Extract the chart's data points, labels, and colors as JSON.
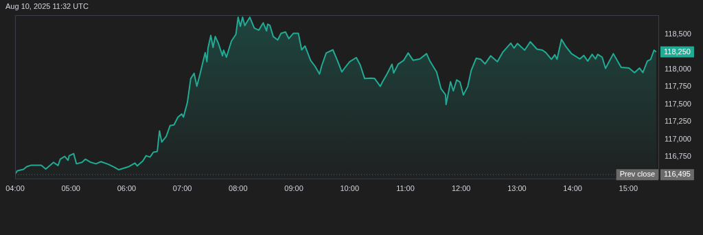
{
  "chart_data": {
    "type": "area",
    "title": "Aug 10, 2025 11:32 UTC",
    "x": [
      4.0,
      4.04,
      4.15,
      4.21,
      4.29,
      4.47,
      4.55,
      4.69,
      4.77,
      4.81,
      4.89,
      4.95,
      4.97,
      5.05,
      5.1,
      5.2,
      5.26,
      5.36,
      5.45,
      5.54,
      5.68,
      5.78,
      5.86,
      5.94,
      6.04,
      6.15,
      6.19,
      6.29,
      6.35,
      6.42,
      6.48,
      6.55,
      6.59,
      6.63,
      6.71,
      6.78,
      6.85,
      6.92,
      6.99,
      7.02,
      7.09,
      7.15,
      7.21,
      7.26,
      7.32,
      7.38,
      7.41,
      7.44,
      7.46,
      7.51,
      7.55,
      7.59,
      7.64,
      7.72,
      7.74,
      7.79,
      7.88,
      7.96,
      8.0,
      8.04,
      8.08,
      8.12,
      8.21,
      8.29,
      8.37,
      8.45,
      8.51,
      8.53,
      8.57,
      8.63,
      8.71,
      8.77,
      8.85,
      8.91,
      8.99,
      9.08,
      9.14,
      9.2,
      9.3,
      9.38,
      9.46,
      9.5,
      9.58,
      9.7,
      9.78,
      9.86,
      9.92,
      10.0,
      10.12,
      10.19,
      10.27,
      10.39,
      10.45,
      10.55,
      10.59,
      10.67,
      10.76,
      10.79,
      10.87,
      10.97,
      11.05,
      11.14,
      11.26,
      11.38,
      11.44,
      11.56,
      11.64,
      11.72,
      11.73,
      11.81,
      11.86,
      11.92,
      11.98,
      12.04,
      12.12,
      12.18,
      12.27,
      12.35,
      12.43,
      12.53,
      12.65,
      12.75,
      12.89,
      12.95,
      13.01,
      13.14,
      13.24,
      13.36,
      13.46,
      13.52,
      13.62,
      13.68,
      13.72,
      13.8,
      13.88,
      13.98,
      14.13,
      14.2,
      14.27,
      14.35,
      14.41,
      14.45,
      14.53,
      14.59,
      14.73,
      14.87,
      15.01,
      15.11,
      15.2,
      15.26,
      15.34,
      15.4,
      15.46,
      15.5
    ],
    "series": [
      {
        "color": "#22ab94",
        "values": [
          116505,
          116550,
          116570,
          116610,
          116630,
          116630,
          116575,
          116670,
          116625,
          116715,
          116755,
          116700,
          116765,
          116795,
          116650,
          116670,
          116715,
          116670,
          116650,
          116680,
          116640,
          116600,
          116565,
          116585,
          116610,
          116660,
          116620,
          116690,
          116765,
          116745,
          116815,
          116825,
          117120,
          116960,
          117040,
          117195,
          117205,
          117315,
          117360,
          117315,
          117525,
          117865,
          117940,
          117755,
          117940,
          118140,
          118235,
          118105,
          118300,
          118480,
          118310,
          118465,
          118380,
          118190,
          118270,
          118170,
          118400,
          118495,
          118740,
          118610,
          118740,
          118620,
          118740,
          118585,
          118555,
          118660,
          118545,
          118640,
          118625,
          118465,
          118415,
          118510,
          118530,
          118435,
          118510,
          118510,
          118275,
          118330,
          118125,
          118040,
          117930,
          118050,
          118230,
          118275,
          118125,
          117960,
          118025,
          118105,
          118165,
          118060,
          117865,
          117870,
          117865,
          117755,
          117820,
          117930,
          118070,
          117945,
          118070,
          118125,
          118230,
          118125,
          118145,
          118220,
          118115,
          117960,
          117720,
          117635,
          117495,
          117820,
          117690,
          117845,
          117815,
          117630,
          117755,
          117980,
          118155,
          118140,
          118075,
          118190,
          118105,
          118245,
          118370,
          118300,
          118365,
          118270,
          118390,
          118285,
          118270,
          118235,
          118140,
          118205,
          118140,
          118425,
          118320,
          118220,
          118145,
          118195,
          118115,
          118210,
          118145,
          118210,
          118170,
          118010,
          118220,
          118025,
          118015,
          117950,
          118015,
          117950,
          118115,
          118140,
          118270,
          118245
        ]
      }
    ],
    "xlim": [
      4,
      15.55
    ],
    "ylim": [
      116430,
      118770
    ],
    "xticks": [
      {
        "value": 4,
        "label": "04:00"
      },
      {
        "value": 5,
        "label": "05:00"
      },
      {
        "value": 6,
        "label": "06:00"
      },
      {
        "value": 7,
        "label": "07:00"
      },
      {
        "value": 8,
        "label": "08:00"
      },
      {
        "value": 9,
        "label": "09:00"
      },
      {
        "value": 10,
        "label": "10:00"
      },
      {
        "value": 11,
        "label": "11:00"
      },
      {
        "value": 12,
        "label": "12:00"
      },
      {
        "value": 13,
        "label": "13:00"
      },
      {
        "value": 14,
        "label": "14:00"
      },
      {
        "value": 15,
        "label": "15:00"
      }
    ],
    "yticks": [
      {
        "value": 116750,
        "label": "116,750"
      },
      {
        "value": 117000,
        "label": "117,000"
      },
      {
        "value": 117250,
        "label": "117,250"
      },
      {
        "value": 117500,
        "label": "117,500"
      },
      {
        "value": 117750,
        "label": "117,750"
      },
      {
        "value": 118000,
        "label": "118,000"
      },
      {
        "value": 118500,
        "label": "118,500"
      }
    ],
    "ref_lines": [
      {
        "axis": "y",
        "value": 116495,
        "label": "Prev close",
        "color": "#5d606b",
        "line_style": "dotted"
      }
    ],
    "annotations": [
      "118,250",
      "116,495"
    ],
    "grid": false,
    "legend": false
  }
}
